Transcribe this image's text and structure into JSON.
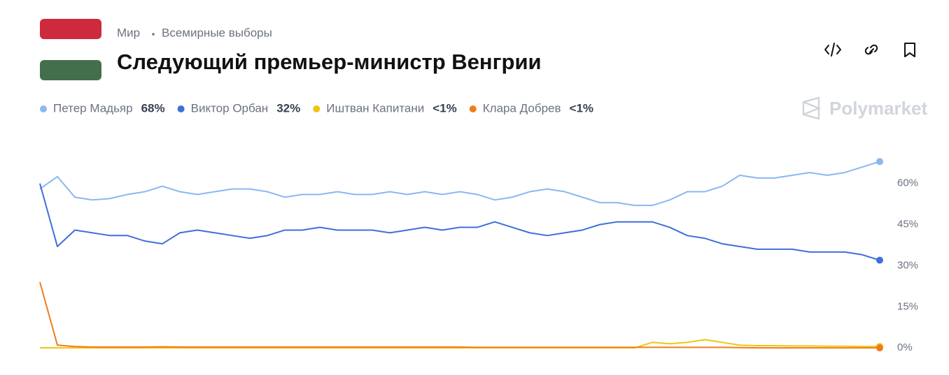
{
  "header": {
    "breadcrumb": [
      "Мир",
      "Всемирные выборы"
    ],
    "title": "Следующий премьер-министр Венгрии",
    "brand": "Polymarket"
  },
  "chart_data": {
    "type": "line",
    "series": [
      {
        "name": "Петер Мадьяр",
        "current": "68%",
        "color": "#8ab8ef",
        "values": [
          58,
          62.5,
          55,
          54,
          54.5,
          56,
          57,
          59,
          57,
          56,
          57,
          58,
          58,
          57,
          55,
          56,
          56,
          57,
          56,
          56,
          57,
          56,
          57,
          56,
          57,
          56,
          54,
          55,
          57,
          58,
          57,
          55,
          53,
          53,
          52,
          52,
          54,
          57,
          57,
          59,
          63,
          62,
          62,
          63,
          64,
          63,
          64,
          66,
          68
        ]
      },
      {
        "name": "Виктор Орбан",
        "current": "32%",
        "color": "#3e6fdc",
        "values": [
          60,
          37,
          43,
          42,
          41,
          41,
          39,
          38,
          42,
          43,
          42,
          41,
          40,
          41,
          43,
          43,
          44,
          43,
          43,
          43,
          42,
          43,
          44,
          43,
          44,
          44,
          46,
          44,
          42,
          41,
          42,
          43,
          45,
          46,
          46,
          46,
          44,
          41,
          40,
          38,
          37,
          36,
          36,
          36,
          35,
          35,
          35,
          34,
          32
        ]
      },
      {
        "name": "Иштван Капитани",
        "current": "<1%",
        "color": "#f2c40f",
        "values": [
          0,
          0,
          0,
          0,
          0,
          0,
          0,
          0,
          0,
          0,
          0,
          0,
          0,
          0,
          0,
          0,
          0,
          0,
          0,
          0,
          0,
          0,
          0,
          0,
          0,
          0,
          0,
          0,
          0,
          0,
          0,
          0,
          0,
          0,
          0,
          2,
          1.5,
          2,
          3,
          2,
          1,
          0.8,
          0.8,
          0.7,
          0.7,
          0.6,
          0.6,
          0.5,
          0.5
        ]
      },
      {
        "name": "Клара Добрев",
        "current": "<1%",
        "color": "#ef7c1a",
        "values": [
          24,
          1,
          0.5,
          0.3,
          0.3,
          0.3,
          0.3,
          0.4,
          0.3,
          0.3,
          0.3,
          0.3,
          0.3,
          0.3,
          0.3,
          0.3,
          0.3,
          0.3,
          0.3,
          0.3,
          0.3,
          0.3,
          0.3,
          0.3,
          0.3,
          0.2,
          0.2,
          0.2,
          0.2,
          0.2,
          0.2,
          0.2,
          0.2,
          0.2,
          0.2,
          0.2,
          0.2,
          0.2,
          0.2,
          0.2,
          0.1,
          0,
          0,
          0,
          0,
          0,
          0,
          0,
          0
        ]
      }
    ],
    "ylim": [
      -2,
      76
    ],
    "yticks": [
      {
        "value": 0,
        "label": "0%"
      },
      {
        "value": 15,
        "label": "15%"
      },
      {
        "value": 30,
        "label": "30%"
      },
      {
        "value": 45,
        "label": "45%"
      },
      {
        "value": 60,
        "label": "60%"
      }
    ],
    "grid": false
  }
}
